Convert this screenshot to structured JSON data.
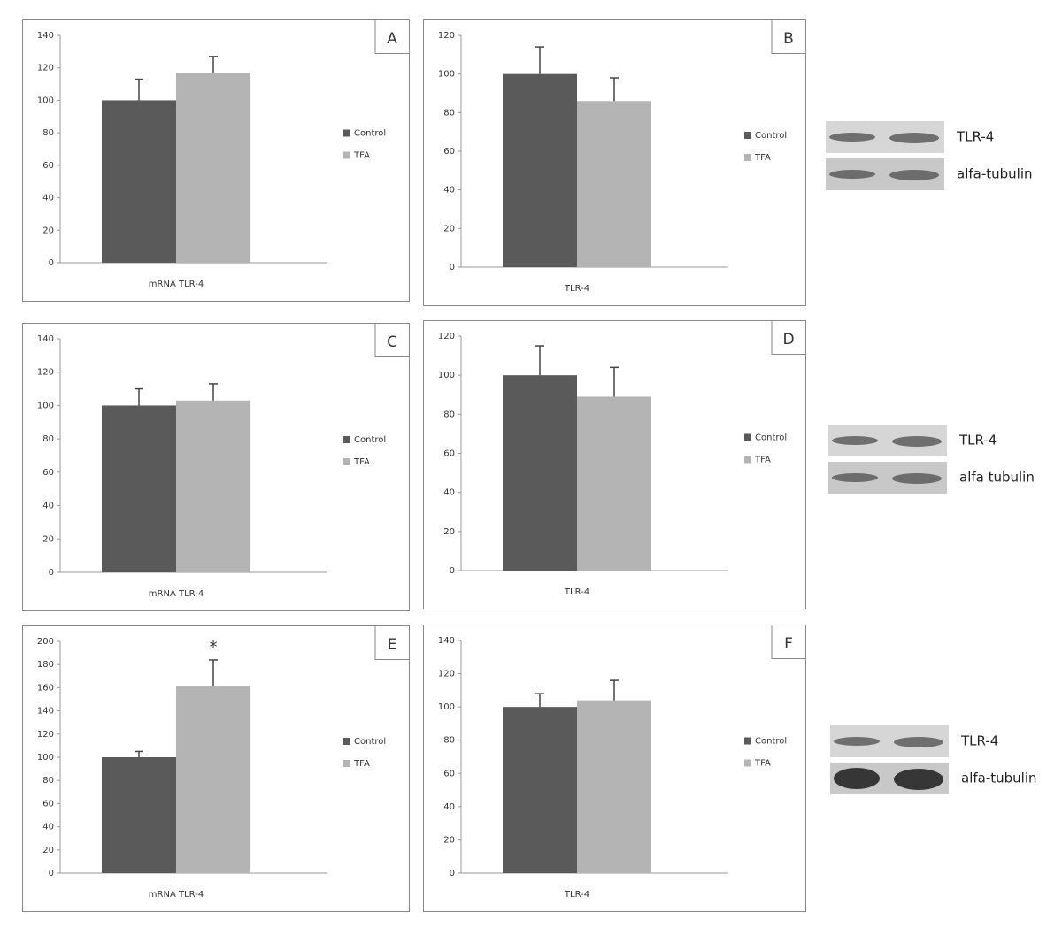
{
  "chart_data": [
    {
      "type": "bar",
      "panel": "A",
      "categories": [
        "mRNA TLR-4"
      ],
      "ylim": [
        0,
        140
      ],
      "yticks": [
        0,
        20,
        40,
        60,
        80,
        100,
        120,
        140
      ],
      "series": [
        {
          "name": "Control",
          "color": "#5a5a5a",
          "values": [
            100
          ],
          "errors": [
            13
          ]
        },
        {
          "name": "TFA",
          "color": "#b4b4b4",
          "values": [
            117
          ],
          "errors": [
            10
          ]
        }
      ]
    },
    {
      "type": "bar",
      "panel": "B",
      "categories": [
        "TLR-4"
      ],
      "ylim": [
        0,
        120
      ],
      "yticks": [
        0,
        20,
        40,
        60,
        80,
        100,
        120
      ],
      "series": [
        {
          "name": "Control",
          "color": "#5a5a5a",
          "values": [
            100
          ],
          "errors": [
            14
          ]
        },
        {
          "name": "TFA",
          "color": "#b4b4b4",
          "values": [
            86
          ],
          "errors": [
            12
          ]
        }
      ]
    },
    {
      "type": "bar",
      "panel": "C",
      "categories": [
        "mRNA TLR-4"
      ],
      "ylim": [
        0,
        140
      ],
      "yticks": [
        0,
        20,
        40,
        60,
        80,
        100,
        120,
        140
      ],
      "series": [
        {
          "name": "Control",
          "color": "#5a5a5a",
          "values": [
            100
          ],
          "errors": [
            10
          ]
        },
        {
          "name": "TFA",
          "color": "#b4b4b4",
          "values": [
            103
          ],
          "errors": [
            10
          ]
        }
      ]
    },
    {
      "type": "bar",
      "panel": "D",
      "categories": [
        "TLR-4"
      ],
      "ylim": [
        0,
        120
      ],
      "yticks": [
        0,
        20,
        40,
        60,
        80,
        100,
        120
      ],
      "series": [
        {
          "name": "Control",
          "color": "#5a5a5a",
          "values": [
            100
          ],
          "errors": [
            15
          ]
        },
        {
          "name": "TFA",
          "color": "#b4b4b4",
          "values": [
            89
          ],
          "errors": [
            15
          ]
        }
      ]
    },
    {
      "type": "bar",
      "panel": "E",
      "categories": [
        "mRNA TLR-4"
      ],
      "ylim": [
        0,
        200
      ],
      "yticks": [
        0,
        20,
        40,
        60,
        80,
        100,
        120,
        140,
        160,
        180,
        200
      ],
      "annotation": "*",
      "series": [
        {
          "name": "Control",
          "color": "#5a5a5a",
          "values": [
            100
          ],
          "errors": [
            5
          ]
        },
        {
          "name": "TFA",
          "color": "#b4b4b4",
          "values": [
            161
          ],
          "errors": [
            23
          ]
        }
      ]
    },
    {
      "type": "bar",
      "panel": "F",
      "categories": [
        "TLR-4"
      ],
      "ylim": [
        0,
        140
      ],
      "yticks": [
        0,
        20,
        40,
        60,
        80,
        100,
        120,
        140
      ],
      "series": [
        {
          "name": "Control",
          "color": "#5a5a5a",
          "values": [
            100
          ],
          "errors": [
            8
          ]
        },
        {
          "name": "TFA",
          "color": "#b4b4b4",
          "values": [
            104
          ],
          "errors": [
            12
          ]
        }
      ]
    }
  ],
  "blots": [
    {
      "labels": [
        "TLR-4",
        "alfa-tubulin"
      ]
    },
    {
      "labels": [
        "TLR-4",
        "alfa tubulin"
      ]
    },
    {
      "labels": [
        "TLR-4",
        "alfa-tubulin"
      ]
    }
  ]
}
